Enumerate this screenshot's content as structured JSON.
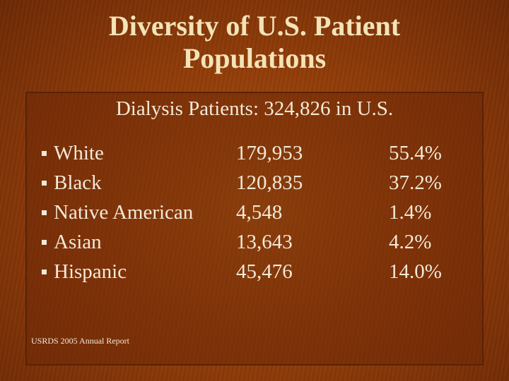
{
  "title": {
    "line1": "Diversity of U.S. Patient",
    "line2": "Populations"
  },
  "subtitle": "Dialysis Patients: 324,826 in U.S.",
  "rows": [
    {
      "group": "White",
      "count": "179,953",
      "percent": "55.4%"
    },
    {
      "group": "Black",
      "count": "120,835",
      "percent": "37.2%"
    },
    {
      "group": "Native American",
      "count": "4,548",
      "percent": "1.4%"
    },
    {
      "group": "Asian",
      "count": "13,643",
      "percent": "4.2%"
    },
    {
      "group": "Hispanic",
      "count": "45,476",
      "percent": "14.0%"
    }
  ],
  "source": "USRDS 2005 Annual Report",
  "colors": {
    "background": "#953f0a",
    "title_text": "#f3e3b8",
    "body_text": "#f2ead8",
    "panel_border": "#5a2205"
  }
}
